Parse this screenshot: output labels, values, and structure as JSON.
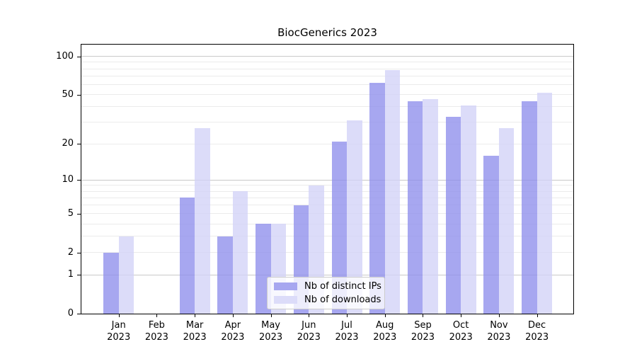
{
  "chart_data": {
    "type": "bar",
    "title": "BiocGenerics 2023",
    "categories": [
      "Jan",
      "Feb",
      "Mar",
      "Apr",
      "May",
      "Jun",
      "Jul",
      "Aug",
      "Sep",
      "Oct",
      "Nov",
      "Dec"
    ],
    "year_suffix": "2023",
    "series": [
      {
        "name": "Nb of distinct IPs",
        "color": "#a7a7f0",
        "values": [
          2,
          0,
          7,
          3,
          4,
          6,
          21,
          62,
          44,
          33,
          16,
          44
        ]
      },
      {
        "name": "Nb of downloads",
        "color": "#dcdcf9",
        "values": [
          3,
          0,
          27,
          8,
          4,
          9,
          31,
          78,
          46,
          41,
          27,
          52
        ]
      }
    ],
    "yticks": [
      0,
      1,
      2,
      5,
      10,
      20,
      50,
      100
    ],
    "major_gridlines": [
      1,
      10,
      100
    ],
    "minor_gridlines": [
      2,
      3,
      4,
      5,
      6,
      7,
      8,
      9,
      20,
      30,
      40,
      50,
      60,
      70,
      80,
      90
    ],
    "yscale": "log1p",
    "ylim": [
      0,
      124
    ],
    "grid": "on",
    "legend_position": "lower center",
    "colors": {
      "major_grid": "#c9c9c9",
      "minor_grid": "#ebebeb",
      "spine": "#000000"
    }
  }
}
